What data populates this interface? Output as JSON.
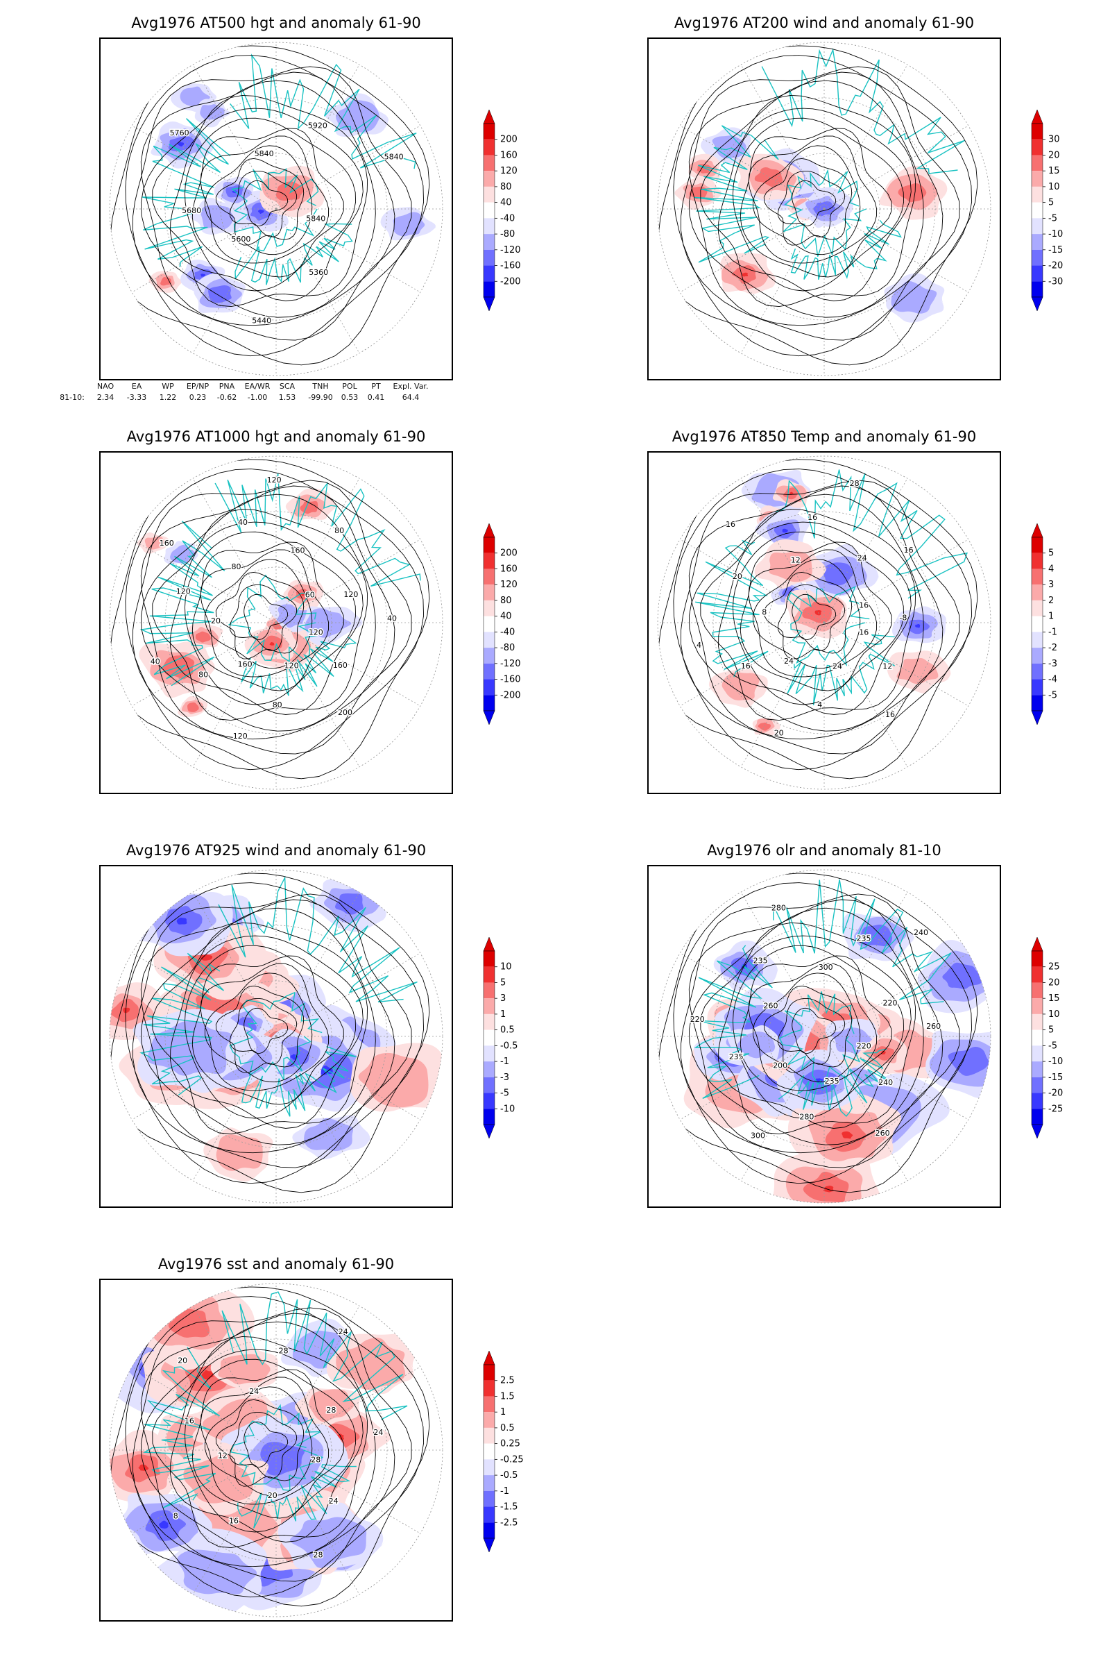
{
  "panels": [
    {
      "id": "p1",
      "title": "Avg1976 AT500 hgt and anomaly 61-90",
      "colorbar": [
        "200",
        "160",
        "120",
        "80",
        "40",
        "-40",
        "-80",
        "-120",
        "-160",
        "-200"
      ],
      "contour_labels": [
        "5840",
        "5360",
        "5440",
        "5600",
        "5680",
        "5760",
        "5840",
        "5920",
        "5840"
      ],
      "anomaly_style": "blob"
    },
    {
      "id": "p2",
      "title": "Avg1976 AT200 wind and anomaly 61-90",
      "colorbar": [
        "30",
        "20",
        "15",
        "10",
        "5",
        "-5",
        "-10",
        "-15",
        "-20",
        "-30"
      ],
      "contour_labels": [],
      "anomaly_style": "blob"
    },
    {
      "id": "p3",
      "title": "Avg1976 AT1000 hgt and anomaly 61-90",
      "colorbar": [
        "200",
        "160",
        "120",
        "80",
        "40",
        "-40",
        "-80",
        "-120",
        "-160",
        "-200"
      ],
      "contour_labels": [
        "120",
        "160",
        "200",
        "120",
        "80",
        "120",
        "160",
        "80",
        "40",
        "20",
        "120",
        "160",
        "80",
        "40",
        "120",
        "160",
        "80",
        "60",
        "120",
        "40"
      ],
      "anomaly_style": "blob"
    },
    {
      "id": "p4",
      "title": "Avg1976 AT850 Temp and anomaly 61-90",
      "colorbar": [
        "5",
        "4",
        "3",
        "2",
        "1",
        "-1",
        "-2",
        "-3",
        "-4",
        "-5"
      ],
      "contour_labels": [
        "16",
        "12",
        "16",
        "24",
        "4",
        "20",
        "24",
        "16",
        "4",
        "8",
        "20",
        "16",
        "12",
        "16",
        "28",
        "24",
        "16",
        "16",
        "-8"
      ],
      "anomaly_style": "blob"
    },
    {
      "id": "p5",
      "title": "Avg1976 AT925 wind and anomaly 61-90",
      "colorbar": [
        "10",
        "5",
        "3",
        "1",
        "0.5",
        "-0.5",
        "-1",
        "-3",
        "-5",
        "-10"
      ],
      "contour_labels": [],
      "anomaly_style": "full"
    },
    {
      "id": "p6",
      "title": "Avg1976 olr and anomaly 81-10",
      "colorbar": [
        "25",
        "20",
        "15",
        "10",
        "5",
        "-5",
        "-10",
        "-15",
        "-20",
        "-25"
      ],
      "contour_labels": [
        "220",
        "240",
        "260",
        "235",
        "280",
        "300",
        "200",
        "235",
        "220",
        "260",
        "235",
        "280",
        "300",
        "235",
        "240",
        "220",
        "260"
      ],
      "anomaly_style": "full"
    },
    {
      "id": "p7",
      "title": "Avg1976 sst and anomaly 61-90",
      "colorbar": [
        "2.5",
        "1.5",
        "1",
        "0.5",
        "0.25",
        "-0.25",
        "-0.5",
        "-1",
        "-1.5",
        "-2.5"
      ],
      "contour_labels": [
        "28",
        "24",
        "28",
        "20",
        "16",
        "8",
        "12",
        "16",
        "20",
        "24",
        "28",
        "24",
        "28",
        "24"
      ],
      "anomaly_style": "full"
    }
  ],
  "indices": {
    "headers": [
      "NAO",
      "EA",
      "WP",
      "EP/NP",
      "PNA",
      "EA/WR",
      "SCA",
      "TNH",
      "POL",
      "PT",
      "Expl. Var."
    ],
    "row_label": "81-10:",
    "values": [
      "2.34",
      "-3.33",
      "1.22",
      "0.23",
      "-0.62",
      "-1.00",
      "1.53",
      "-99.90",
      "0.53",
      "0.41",
      "64.4"
    ]
  },
  "colors": {
    "contour": "#000000",
    "coast": "#19c2c2",
    "grid": "#9a9a9a",
    "red_scale": [
      "#dd0000",
      "#f03030",
      "#f77070",
      "#fbaaaa",
      "#fde0e0"
    ],
    "blue_scale": [
      "#e2e2ff",
      "#aaaaff",
      "#7070ff",
      "#3838ff",
      "#0000ee"
    ]
  }
}
